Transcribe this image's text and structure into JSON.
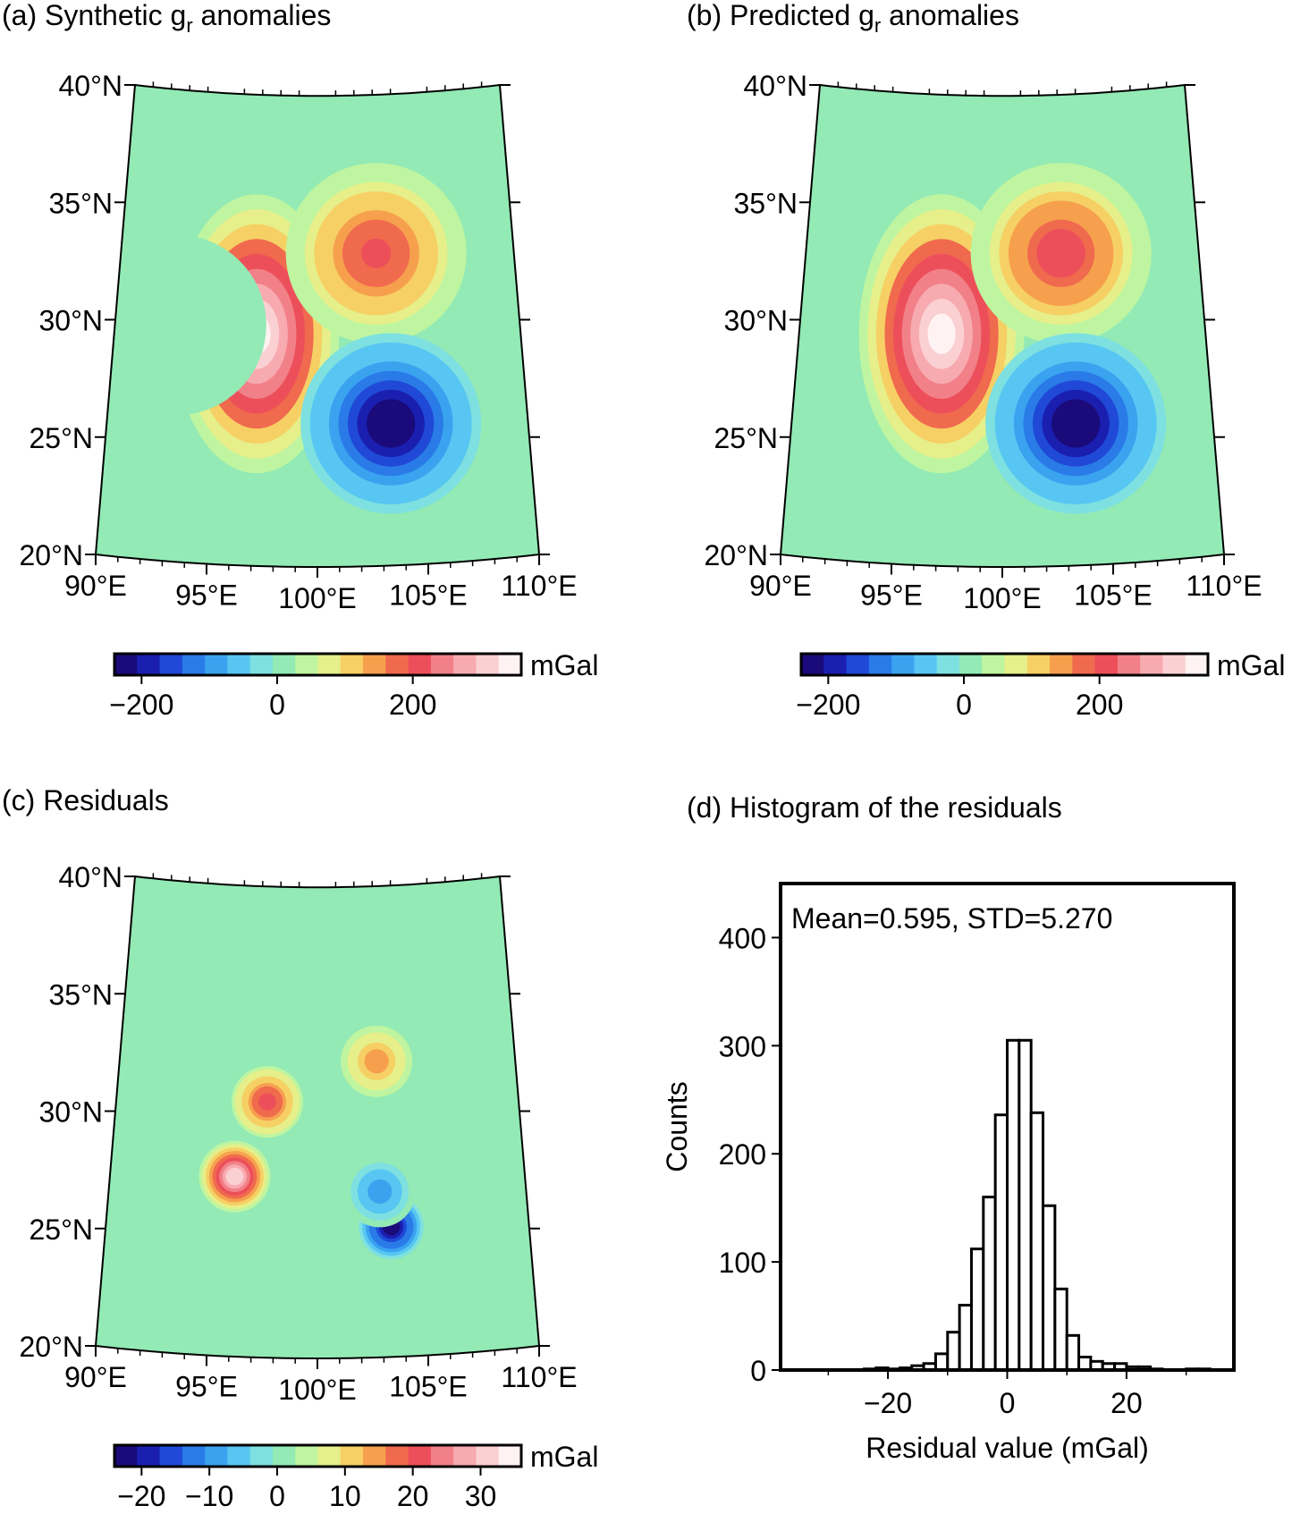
{
  "panels": [
    {
      "id": "a",
      "title_prefix": "(a) Synthetic g",
      "title_sub": "r",
      "title_suffix": " anomalies"
    },
    {
      "id": "b",
      "title_prefix": "(b) Predicted g",
      "title_sub": "r",
      "title_suffix": " anomalies"
    },
    {
      "id": "c",
      "title": "(c) Residuals"
    },
    {
      "id": "d",
      "title": "(d) Histogram of the residuals"
    }
  ],
  "map_axes": {
    "lat_labels": [
      "20°N",
      "25°N",
      "30°N",
      "35°N",
      "40°N"
    ],
    "lon_labels": [
      "90°E",
      "95°E",
      "100°E",
      "105°E",
      "110°E"
    ],
    "lat_range": [
      20,
      40
    ],
    "lon_range": [
      90,
      110
    ]
  },
  "colorbars": {
    "anomaly": {
      "unit": "mGal",
      "ticks": [
        "−200",
        "0",
        "200"
      ],
      "tick_values": [
        -200,
        0,
        200
      ],
      "range": [
        -240,
        360
      ]
    },
    "residual": {
      "unit": "mGal",
      "ticks": [
        "−20",
        "−10",
        "0",
        "10",
        "20",
        "30"
      ],
      "tick_values": [
        -20,
        -10,
        0,
        10,
        20,
        30
      ],
      "range": [
        -24,
        36
      ]
    }
  },
  "palette": [
    "#1a0a7a",
    "#1a1fb0",
    "#1f49d6",
    "#2a7be8",
    "#3aa3f0",
    "#57c6f2",
    "#7ee0e0",
    "#93eab5",
    "#bff5a0",
    "#e6ef8a",
    "#f6d064",
    "#f6a04e",
    "#f06a4e",
    "#ec4f5a",
    "#f28088",
    "#f7aab0",
    "#fbd0d3",
    "#fff2f2"
  ],
  "chart_data": [
    {
      "type": "heatmap",
      "title": "(a) Synthetic gr anomalies",
      "xlabel": "",
      "ylabel": "",
      "unit": "mGal",
      "xlim": [
        90,
        110
      ],
      "ylim": [
        20,
        40
      ],
      "anomalies": [
        {
          "lon": 97,
          "lat": 29.8,
          "value": 360,
          "shape": "elongated"
        },
        {
          "lon": 103,
          "lat": 33.2,
          "value": 210
        },
        {
          "lon": 103.5,
          "lat": 26,
          "value": -240
        },
        {
          "lon": 93,
          "lat": 30,
          "value": 20
        }
      ]
    },
    {
      "type": "heatmap",
      "title": "(b) Predicted gr anomalies",
      "xlabel": "",
      "ylabel": "",
      "unit": "mGal",
      "xlim": [
        90,
        110
      ],
      "ylim": [
        20,
        40
      ],
      "anomalies": [
        {
          "lon": 97,
          "lat": 29.8,
          "value": 355,
          "shape": "elongated"
        },
        {
          "lon": 103,
          "lat": 33.2,
          "value": 220
        },
        {
          "lon": 103.5,
          "lat": 26,
          "value": -240
        }
      ]
    },
    {
      "type": "heatmap",
      "title": "(c) Residuals",
      "xlabel": "",
      "ylabel": "",
      "unit": "mGal",
      "xlim": [
        90,
        110
      ],
      "ylim": [
        20,
        40
      ],
      "anomalies": [
        {
          "lon": 96,
          "lat": 27.6,
          "value": 32
        },
        {
          "lon": 97.5,
          "lat": 30.8,
          "value": 20
        },
        {
          "lon": 103,
          "lat": 32.5,
          "value": 15
        },
        {
          "lon": 103.5,
          "lat": 25.5,
          "value": -22
        },
        {
          "lon": 103,
          "lat": 27,
          "value": -10
        }
      ]
    },
    {
      "type": "bar",
      "title": "(d) Histogram of the residuals",
      "annotation": "Mean=0.595, STD=5.270",
      "xlabel": "Residual value (mGal)",
      "ylabel": "Counts",
      "bin_width": 2,
      "bin_centers": [
        -35,
        -33,
        -31,
        -29,
        -27,
        -25,
        -23,
        -21,
        -19,
        -17,
        -15,
        -13,
        -11,
        -9,
        -7,
        -5,
        -3,
        -1,
        1,
        3,
        5,
        7,
        9,
        11,
        13,
        15,
        17,
        19,
        21,
        23,
        25,
        27,
        29,
        31,
        33,
        35
      ],
      "values": [
        0,
        0,
        0,
        0,
        0,
        0,
        1,
        2,
        1,
        2,
        4,
        6,
        15,
        35,
        60,
        112,
        160,
        236,
        305,
        305,
        238,
        152,
        75,
        32,
        12,
        8,
        6,
        6,
        3,
        3,
        1,
        0,
        0,
        1,
        1,
        0
      ],
      "xlim": [
        -38,
        38
      ],
      "ylim": [
        0,
        450
      ],
      "xticks": [
        -20,
        0,
        20
      ],
      "xtick_labels": [
        "−20",
        "0",
        "20"
      ],
      "yticks": [
        0,
        100,
        200,
        300,
        400
      ],
      "ytick_labels": [
        "0",
        "100",
        "200",
        "300",
        "400"
      ]
    }
  ]
}
